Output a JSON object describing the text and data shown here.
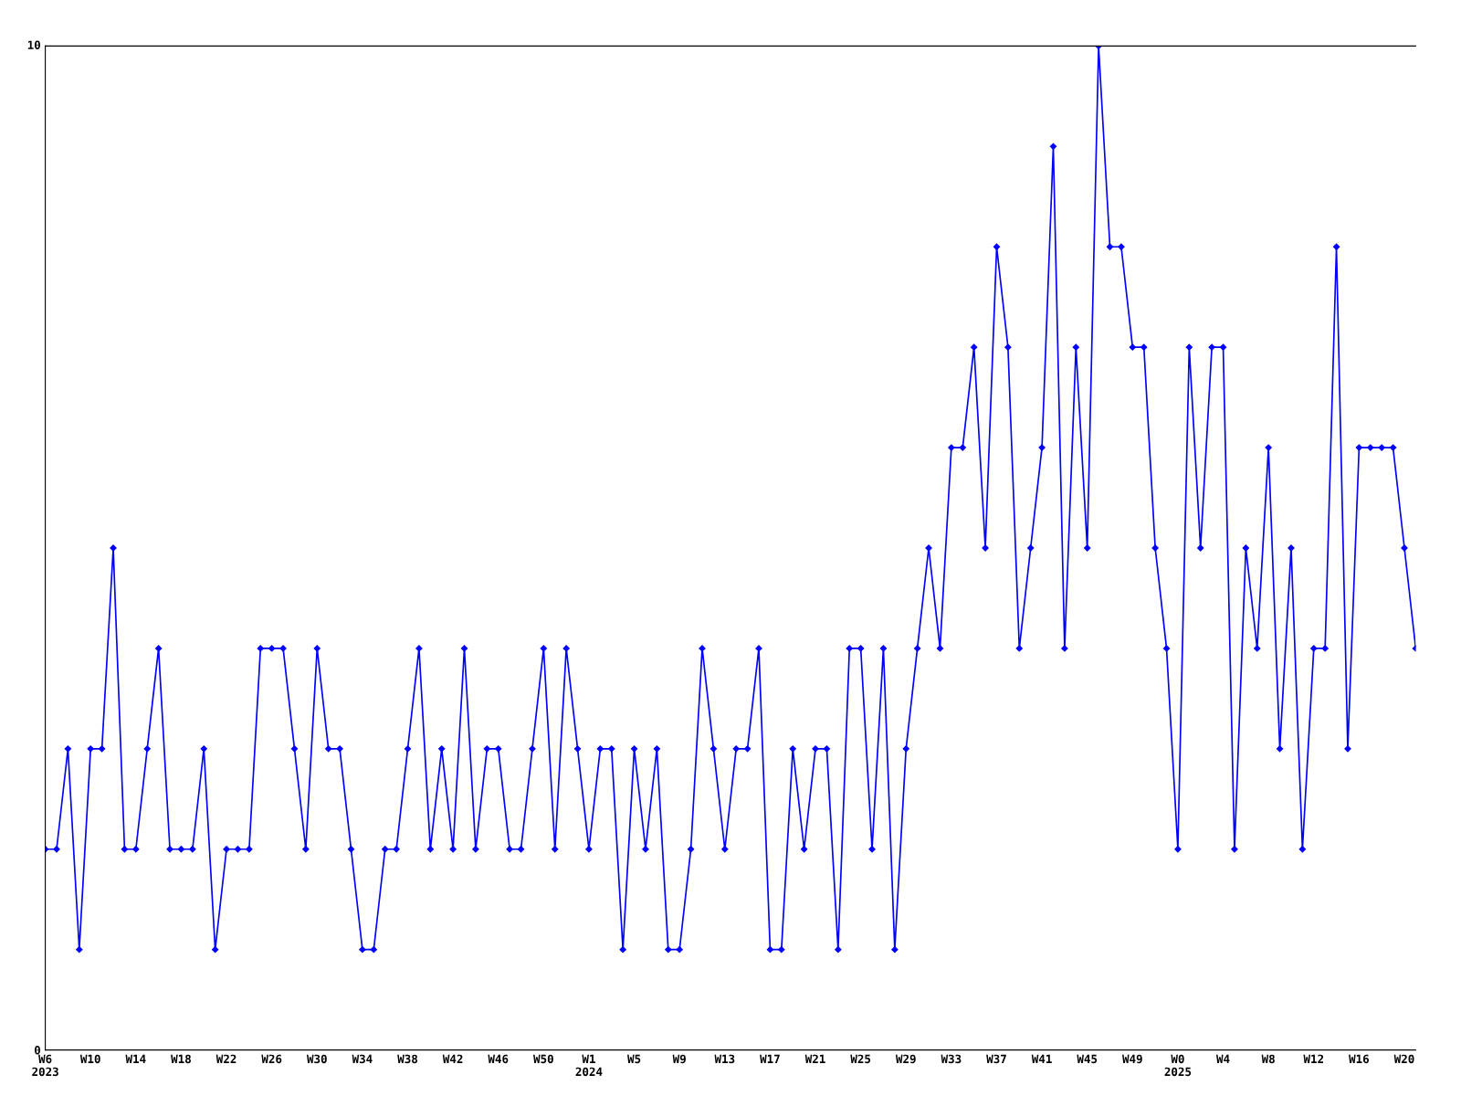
{
  "chart_data": {
    "type": "line",
    "categories": [
      "W6\n2023",
      null,
      null,
      null,
      "W10",
      null,
      null,
      null,
      "W14",
      null,
      null,
      null,
      "W18",
      null,
      null,
      null,
      "W22",
      null,
      null,
      null,
      "W26",
      null,
      null,
      null,
      "W30",
      null,
      null,
      null,
      "W34",
      null,
      null,
      null,
      "W38",
      null,
      null,
      null,
      "W42",
      null,
      null,
      null,
      "W46",
      null,
      null,
      null,
      "W50",
      null,
      null,
      null,
      "W1\n2024",
      null,
      null,
      null,
      "W5",
      null,
      null,
      null,
      "W9",
      null,
      null,
      null,
      "W13",
      null,
      null,
      null,
      "W17",
      null,
      null,
      null,
      "W21",
      null,
      null,
      null,
      "W25",
      null,
      null,
      null,
      "W29",
      null,
      null,
      null,
      "W33",
      null,
      null,
      null,
      "W37",
      null,
      null,
      null,
      "W41",
      null,
      null,
      null,
      "W45",
      null,
      null,
      null,
      "W49",
      null,
      null,
      null,
      "W0\n2025",
      null,
      null,
      null,
      "W4",
      null,
      null,
      null,
      "W8",
      null,
      null,
      null,
      "W12",
      null,
      null,
      null,
      "W16",
      null,
      null,
      null,
      "W20",
      null
    ],
    "series": [
      {
        "color": "#0000ff",
        "values": [
          2,
          2,
          3,
          1,
          3,
          3,
          5,
          2,
          2,
          3,
          4,
          2,
          2,
          2,
          3,
          1,
          2,
          2,
          2,
          4,
          4,
          4,
          3,
          2,
          4,
          3,
          3,
          2,
          1,
          1,
          2,
          2,
          3,
          4,
          2,
          3,
          2,
          4,
          2,
          3,
          3,
          2,
          2,
          3,
          4,
          2,
          4,
          3,
          2,
          3,
          3,
          1,
          3,
          2,
          3,
          1,
          1,
          2,
          4,
          3,
          2,
          3,
          3,
          4,
          1,
          1,
          3,
          2,
          3,
          3,
          1,
          4,
          4,
          2,
          4,
          1,
          3,
          4,
          5,
          4,
          6,
          6,
          7,
          5,
          8,
          7,
          4,
          5,
          6,
          9,
          4,
          7,
          5,
          10,
          8,
          8,
          7,
          7,
          5,
          4,
          2,
          7,
          5,
          7,
          7,
          2,
          5,
          4,
          6,
          3,
          5,
          2,
          4,
          4,
          8,
          3,
          6,
          6,
          6,
          6,
          5,
          4
        ]
      }
    ],
    "ylim": [
      0,
      10
    ],
    "yticks": [
      0,
      10
    ],
    "grid": false,
    "legend": false,
    "marker": "diamond",
    "line_style": "solid"
  }
}
